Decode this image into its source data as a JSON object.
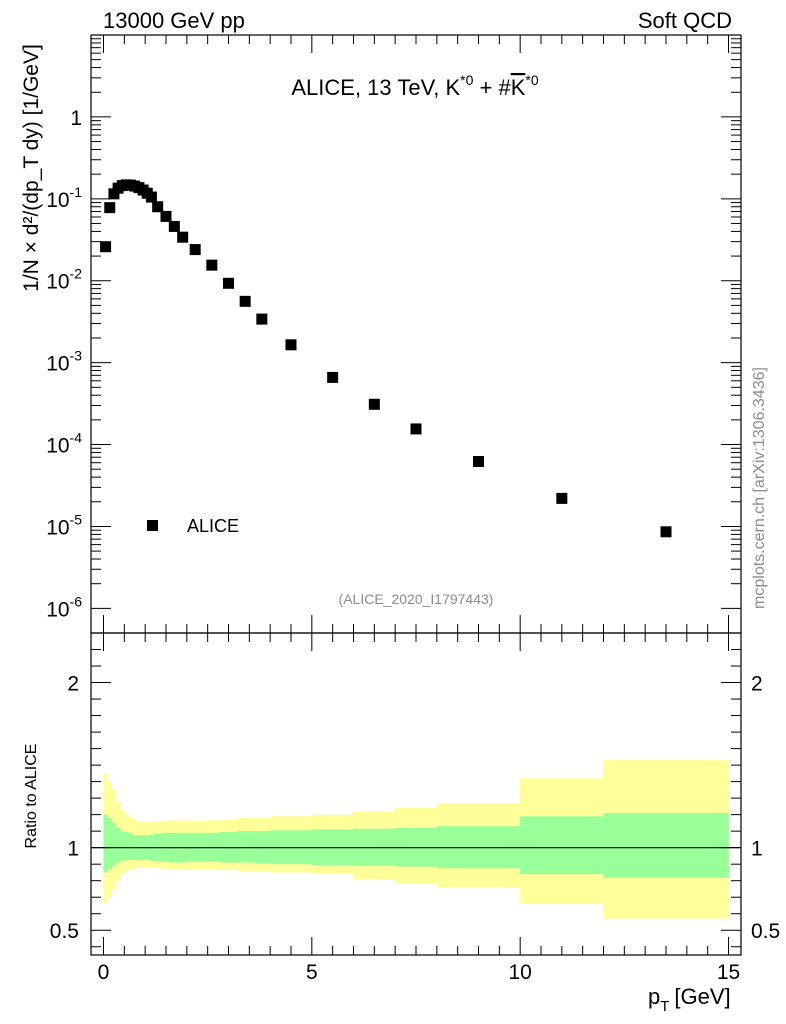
{
  "header": {
    "left": "13000 GeV pp",
    "right": "Soft QCD"
  },
  "side_label": "mcplots.cern.ch [arXiv:1306.3436]",
  "chart_data": [
    {
      "type": "scatter",
      "panel": "main",
      "title_prefix": "ALICE, 13 TeV, K",
      "title_sup1": "*0",
      "title_mid": " + #",
      "title_kbar": "K",
      "title_sup2": "*0",
      "ylabel": "1/N × d²/(dp_T dy) [1/GeV]",
      "yscale": "log",
      "ylim": [
        5e-07,
        10
      ],
      "xlim": [
        -0.3,
        15.3
      ],
      "ytick_labels": [
        {
          "base": "10",
          "exp": "-6",
          "value": 1e-06
        },
        {
          "base": "10",
          "exp": "-5",
          "value": 1e-05
        },
        {
          "base": "10",
          "exp": "-4",
          "value": 0.0001
        },
        {
          "base": "10",
          "exp": "-3",
          "value": 0.001
        },
        {
          "base": "10",
          "exp": "-2",
          "value": 0.01
        },
        {
          "base": "10",
          "exp": "-1",
          "value": 0.1
        },
        {
          "base": "1",
          "exp": "",
          "value": 1
        }
      ],
      "legend": "ALICE",
      "legend_placement": "lower-left",
      "analysis_id": "(ALICE_2020_I1797443)",
      "series": [
        {
          "name": "ALICE",
          "x": [
            0.05,
            0.15,
            0.25,
            0.35,
            0.45,
            0.55,
            0.65,
            0.75,
            0.85,
            0.95,
            1.05,
            1.15,
            1.3,
            1.5,
            1.7,
            1.9,
            2.2,
            2.6,
            3.0,
            3.4,
            3.8,
            4.5,
            5.5,
            6.5,
            7.5,
            9.0,
            11.0,
            13.5
          ],
          "y": [
            0.026,
            0.078,
            0.115,
            0.135,
            0.145,
            0.148,
            0.147,
            0.143,
            0.137,
            0.128,
            0.117,
            0.105,
            0.08,
            0.061,
            0.046,
            0.034,
            0.024,
            0.0155,
            0.0093,
            0.0056,
            0.0034,
            0.00165,
            0.00066,
            0.00031,
            0.000155,
            6.2e-05,
            2.2e-05,
            8.6e-06
          ]
        }
      ]
    },
    {
      "type": "area",
      "panel": "ratio",
      "ylabel": "Ratio to ALICE",
      "xlabel_main": "p",
      "xlabel_sub": "T",
      "xlabel_unit": "[GeV]",
      "xlim": [
        -0.3,
        15.3
      ],
      "ylim": [
        0.35,
        2.3
      ],
      "xticks": [
        0,
        5,
        10,
        15
      ],
      "yticks": [
        0.5,
        1,
        2
      ],
      "reference_line": 1,
      "bands": {
        "edges": [
          0,
          0.1,
          0.2,
          0.3,
          0.4,
          0.5,
          0.6,
          0.7,
          0.8,
          0.9,
          1.0,
          1.1,
          1.2,
          1.4,
          1.6,
          1.8,
          2.0,
          2.4,
          2.8,
          3.2,
          3.6,
          4.0,
          5.0,
          6.0,
          7.0,
          8.0,
          10.0,
          12.0,
          15.0
        ],
        "stat_lo": [
          0.85,
          0.87,
          0.89,
          0.91,
          0.92,
          0.925,
          0.925,
          0.925,
          0.925,
          0.925,
          0.925,
          0.92,
          0.92,
          0.915,
          0.91,
          0.91,
          0.915,
          0.915,
          0.91,
          0.91,
          0.905,
          0.9,
          0.895,
          0.89,
          0.885,
          0.875,
          0.84,
          0.82
        ],
        "stat_hi": [
          1.2,
          1.18,
          1.15,
          1.12,
          1.1,
          1.095,
          1.085,
          1.075,
          1.075,
          1.075,
          1.075,
          1.08,
          1.085,
          1.09,
          1.09,
          1.09,
          1.09,
          1.09,
          1.095,
          1.1,
          1.1,
          1.105,
          1.11,
          1.115,
          1.12,
          1.13,
          1.19,
          1.21
        ],
        "syst_lo": [
          0.66,
          0.7,
          0.75,
          0.8,
          0.84,
          0.86,
          0.87,
          0.875,
          0.88,
          0.88,
          0.88,
          0.88,
          0.875,
          0.87,
          0.865,
          0.865,
          0.87,
          0.87,
          0.865,
          0.86,
          0.855,
          0.85,
          0.84,
          0.81,
          0.78,
          0.76,
          0.66,
          0.57
        ],
        "syst_hi": [
          1.45,
          1.4,
          1.35,
          1.28,
          1.23,
          1.2,
          1.18,
          1.17,
          1.16,
          1.155,
          1.155,
          1.155,
          1.16,
          1.165,
          1.165,
          1.165,
          1.165,
          1.165,
          1.17,
          1.18,
          1.18,
          1.19,
          1.2,
          1.22,
          1.24,
          1.27,
          1.42,
          1.53
        ]
      },
      "colors": {
        "stat": "#99ff99",
        "syst": "#ffff99"
      }
    }
  ],
  "colors": {
    "marker": "#000000",
    "axis": "#000000",
    "analysis_id": "#8c8c8c",
    "side_label": "#8c8c8c"
  }
}
